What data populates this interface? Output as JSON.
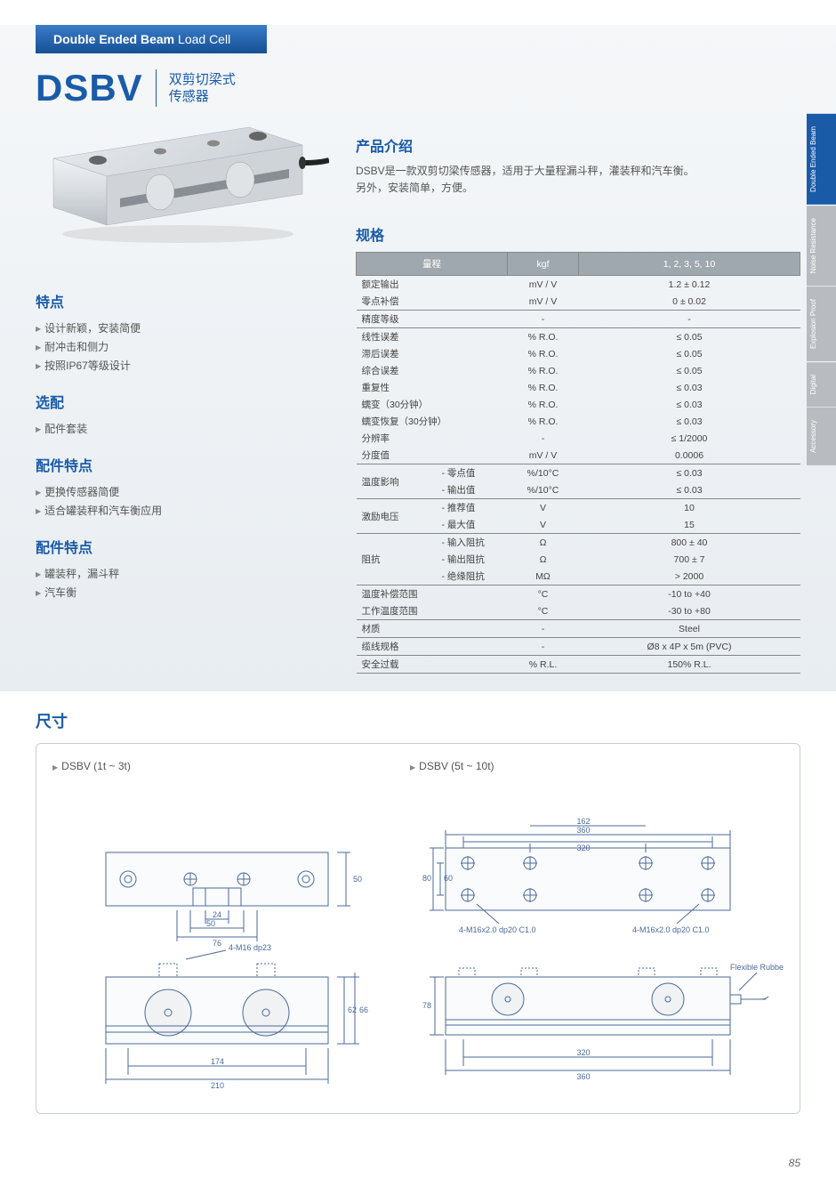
{
  "header": {
    "bold": "Double Ended Beam",
    "light": "Load Cell"
  },
  "title": {
    "main": "DSBV",
    "sub1": "双剪切梁式",
    "sub2": "传感器"
  },
  "sideTabs": [
    {
      "label": "Double Ended Beam",
      "active": true
    },
    {
      "label": "Noise Resistance",
      "active": false
    },
    {
      "label": "Explosion Proof",
      "active": false
    },
    {
      "label": "Digital",
      "active": false
    },
    {
      "label": "Accessory",
      "active": false
    }
  ],
  "intro": {
    "heading": "产品介绍",
    "line1": "DSBV是一款双剪切梁传感器，适用于大量程漏斗秤，灌装秤和汽车衡。",
    "line2": "另外，安装简单，方便。"
  },
  "features": {
    "heading": "特点",
    "items": [
      "设计新颖，安装简便",
      "耐冲击和侧力",
      "按照IP67等级设计"
    ]
  },
  "options": {
    "heading": "选配",
    "items": [
      "配件套装"
    ]
  },
  "accFeat": {
    "heading": "配件特点",
    "items": [
      "更换传感器简便",
      "适合罐装秤和汽车衡应用"
    ]
  },
  "accFeat2": {
    "heading": "配件特点",
    "items": [
      "罐装秤，漏斗秤",
      "汽车衡"
    ]
  },
  "specHeading": "规格",
  "specHeaders": {
    "c1": "量程",
    "c2": "kgf",
    "c3": "1, 2, 3, 5, 10"
  },
  "specs": [
    {
      "label": "额定输出",
      "sub": "",
      "unit": "mV / V",
      "val": "1.2 ± 0.12",
      "sep": false
    },
    {
      "label": "零点补偿",
      "sub": "",
      "unit": "mV / V",
      "val": "0 ± 0.02",
      "sep": true
    },
    {
      "label": "精度等级",
      "sub": "",
      "unit": "-",
      "val": "-",
      "sep": true
    },
    {
      "label": "线性误差",
      "sub": "",
      "unit": "% R.O.",
      "val": "≤ 0.05",
      "sep": false
    },
    {
      "label": "滞后误差",
      "sub": "",
      "unit": "% R.O.",
      "val": "≤ 0.05",
      "sep": false
    },
    {
      "label": "综合误差",
      "sub": "",
      "unit": "% R.O.",
      "val": "≤ 0.05",
      "sep": false
    },
    {
      "label": "重复性",
      "sub": "",
      "unit": "% R.O.",
      "val": "≤ 0.03",
      "sep": false
    },
    {
      "label": "蠕变（30分钟）",
      "sub": "",
      "unit": "% R.O.",
      "val": "≤ 0.03",
      "sep": false
    },
    {
      "label": "蠕变恢复（30分钟）",
      "sub": "",
      "unit": "% R.O.",
      "val": "≤ 0.03",
      "sep": false
    },
    {
      "label": "分辨率",
      "sub": "",
      "unit": "-",
      "val": "≤ 1/2000",
      "sep": false
    },
    {
      "label": "分度值",
      "sub": "",
      "unit": "mV / V",
      "val": "0.0006",
      "sep": true
    },
    {
      "label": "温度影响",
      "sub": "- 零点值",
      "unit": "%/10°C",
      "val": "≤ 0.03",
      "sep": false,
      "rowspan": 2
    },
    {
      "label": "",
      "sub": "- 输出值",
      "unit": "%/10°C",
      "val": "≤ 0.03",
      "sep": true
    },
    {
      "label": "激励电压",
      "sub": "- 推荐值",
      "unit": "V",
      "val": "10",
      "sep": false,
      "rowspan": 2
    },
    {
      "label": "",
      "sub": "- 最大值",
      "unit": "V",
      "val": "15",
      "sep": true
    },
    {
      "label": "阻抗",
      "sub": "- 输入阻抗",
      "unit": "Ω",
      "val": "800 ± 40",
      "sep": false,
      "rowspan": 3
    },
    {
      "label": "",
      "sub": "- 输出阻抗",
      "unit": "Ω",
      "val": "700 ± 7",
      "sep": false
    },
    {
      "label": "",
      "sub": "- 绝缘阻抗",
      "unit": "MΩ",
      "val": "> 2000",
      "sep": true
    },
    {
      "label": "温度补偿范围",
      "sub": "",
      "unit": "°C",
      "val": "-10 to +40",
      "sep": false
    },
    {
      "label": "工作温度范围",
      "sub": "",
      "unit": "°C",
      "val": "-30 to +80",
      "sep": true
    },
    {
      "label": "材质",
      "sub": "",
      "unit": "-",
      "val": "Steel",
      "sep": true
    },
    {
      "label": "缆线规格",
      "sub": "",
      "unit": "-",
      "val": "Ø8 x 4P x 5m (PVC)",
      "sep": true
    },
    {
      "label": "安全过载",
      "sub": "",
      "unit": "% R.L.",
      "val": "150% R.L.",
      "sep": true
    }
  ],
  "dim": {
    "heading": "尺寸",
    "left": "DSBV (1t ~ 3t)",
    "right": "DSBV (5t ~ 10t)",
    "d1": {
      "w": "210",
      "wi": "174",
      "slot_w": "76",
      "slot_wi": "50",
      "slot_c": "24",
      "h": "50",
      "side_h": "66",
      "side_hi": "62",
      "thread": "4-M16 dp23"
    },
    "d2": {
      "w": "360",
      "wi": "320",
      "wc": "162",
      "h": "80",
      "hi": "60",
      "thread1": "4-M16x2.0 dp20 C1.0",
      "thread2": "4-M16x2.0 dp20 C1.0",
      "side_h": "78",
      "rubber": "Flexible Rubber"
    }
  },
  "pageNum": "85",
  "colors": {
    "primary": "#1a5ba8",
    "tableHeader": "#9fa8af",
    "border": "#888",
    "tabInactive": "#b8bcc0",
    "drawing": "#4a6a9a"
  }
}
